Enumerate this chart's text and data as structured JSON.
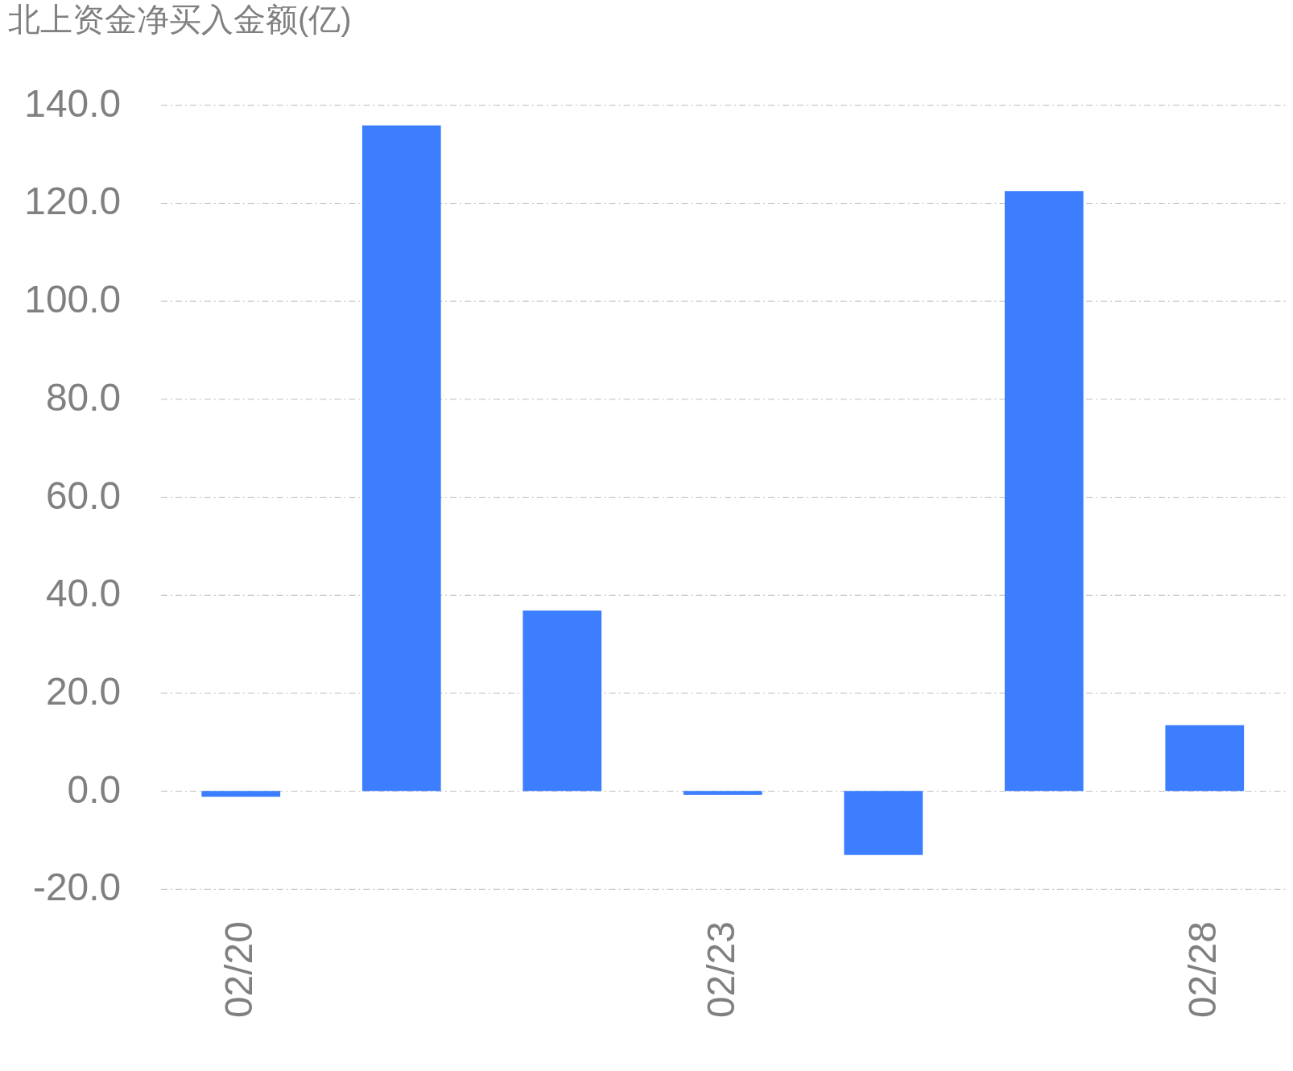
{
  "chart_data": {
    "type": "bar",
    "title": "北上资金净买入金额(亿)",
    "categories": [
      "02/20",
      null,
      null,
      "02/23",
      null,
      null,
      "02/28"
    ],
    "values": [
      -1.2,
      135.8,
      36.8,
      -0.8,
      -13.1,
      122.4,
      13.4
    ],
    "color": "#3d7eff",
    "ylim": [
      -20,
      140
    ],
    "yticks": [
      {
        "value": -20,
        "label": "-20.0"
      },
      {
        "value": 0,
        "label": "0.0"
      },
      {
        "value": 20,
        "label": "20.0"
      },
      {
        "value": 40,
        "label": "40.0"
      },
      {
        "value": 60,
        "label": "60.0"
      },
      {
        "value": 80,
        "label": "80.0"
      },
      {
        "value": 100,
        "label": "100.0"
      },
      {
        "value": 120,
        "label": "120.0"
      },
      {
        "value": 140,
        "label": "140.0"
      }
    ],
    "grid": "y"
  }
}
